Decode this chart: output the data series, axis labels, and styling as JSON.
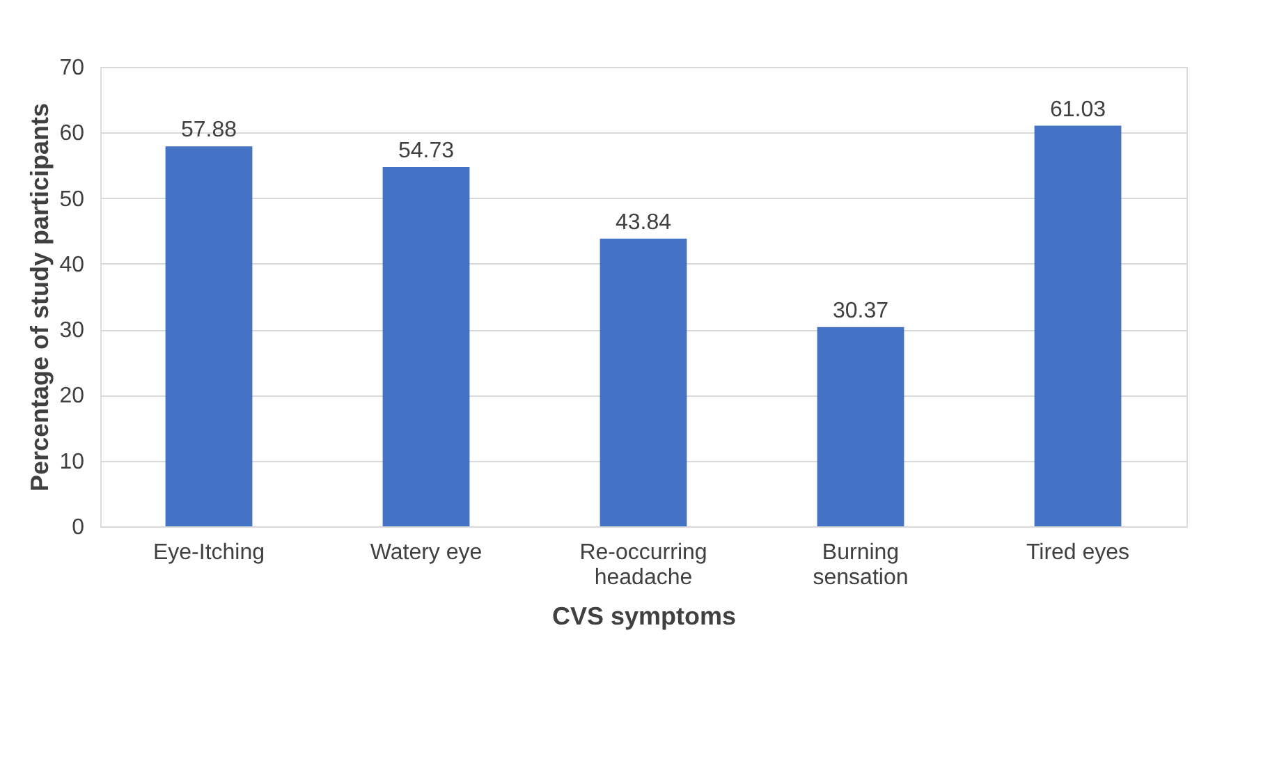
{
  "chart_data": {
    "type": "bar",
    "xlabel": "CVS symptoms",
    "ylabel": "Percentage of study participants",
    "categories": [
      "Eye-Itching",
      "Watery eye",
      "Re-occurring\nheadache",
      "Burning\nsensation",
      "Tired eyes"
    ],
    "values": [
      57.88,
      54.73,
      43.84,
      30.37,
      61.03
    ],
    "color": "#4472c4",
    "ylim": [
      0,
      70
    ],
    "yticks": [
      0,
      10,
      20,
      30,
      40,
      50,
      60,
      70
    ],
    "grid": "y",
    "data_labels": true
  }
}
